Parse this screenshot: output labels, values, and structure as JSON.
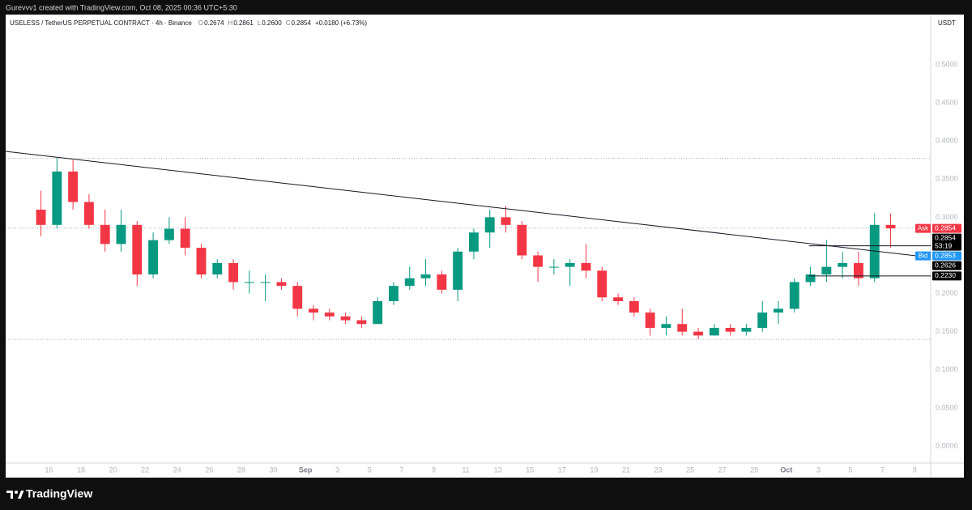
{
  "chart_data": {
    "type": "candlestick",
    "credit": "Gurevvv1 created with TradingView.com, Oct 08, 2025 00:36 UTC+5:30",
    "title": "USELESS / TetherUS PERPETUAL CONTRACT · 4h · Binance",
    "legend": [
      {
        "key": "O",
        "value": "0.2674"
      },
      {
        "key": "H",
        "value": "0.2861"
      },
      {
        "key": "L",
        "value": "0.2600"
      },
      {
        "key": "C",
        "value": "0.2854"
      }
    ],
    "change": "+0.0180 (+6.73%)",
    "currency": "USDT",
    "brand": "TradingView",
    "up_color": "#089981",
    "down_color": "#f23645",
    "x": [
      15.5,
      16.5,
      17.5,
      18.5,
      19.5,
      20.5,
      21.5,
      22.5,
      23.5,
      24.5,
      25.5,
      26.5,
      27.5,
      28.5,
      29.5,
      30.5,
      31.5,
      32.5,
      33.5,
      34.5,
      35.5,
      36.5,
      37.5,
      38.5,
      39.5,
      40.5,
      41.5,
      42.5,
      43.5,
      44.5,
      45.5,
      46.5,
      47.5,
      48.5,
      49.5,
      50.5,
      51.5,
      52.5,
      53.5,
      54.5,
      55.5,
      56.5,
      57.5,
      58.5,
      59.5,
      60.5,
      61.5,
      62.5,
      63.5,
      64.5,
      65.5,
      66.5,
      67.5,
      68.5
    ],
    "open": [
      0.31,
      0.29,
      0.36,
      0.32,
      0.29,
      0.265,
      0.29,
      0.225,
      0.27,
      0.285,
      0.26,
      0.225,
      0.24,
      0.215,
      0.215,
      0.215,
      0.21,
      0.18,
      0.175,
      0.17,
      0.165,
      0.16,
      0.19,
      0.21,
      0.22,
      0.225,
      0.205,
      0.255,
      0.28,
      0.3,
      0.29,
      0.25,
      0.235,
      0.235,
      0.24,
      0.23,
      0.195,
      0.19,
      0.175,
      0.155,
      0.16,
      0.15,
      0.145,
      0.155,
      0.15,
      0.155,
      0.175,
      0.18,
      0.215,
      0.225,
      0.235,
      0.24,
      0.22,
      0.29
    ],
    "high": [
      0.335,
      0.378,
      0.375,
      0.33,
      0.31,
      0.31,
      0.295,
      0.28,
      0.3,
      0.3,
      0.265,
      0.245,
      0.245,
      0.23,
      0.225,
      0.22,
      0.215,
      0.185,
      0.18,
      0.175,
      0.17,
      0.195,
      0.215,
      0.235,
      0.245,
      0.23,
      0.26,
      0.285,
      0.31,
      0.315,
      0.295,
      0.255,
      0.245,
      0.245,
      0.265,
      0.235,
      0.2,
      0.195,
      0.18,
      0.17,
      0.18,
      0.155,
      0.16,
      0.16,
      0.16,
      0.19,
      0.19,
      0.22,
      0.235,
      0.27,
      0.255,
      0.255,
      0.305,
      0.305
    ],
    "low": [
      0.275,
      0.285,
      0.31,
      0.285,
      0.255,
      0.255,
      0.21,
      0.22,
      0.265,
      0.25,
      0.22,
      0.22,
      0.205,
      0.2,
      0.19,
      0.205,
      0.17,
      0.165,
      0.165,
      0.16,
      0.155,
      0.16,
      0.185,
      0.205,
      0.21,
      0.2,
      0.19,
      0.245,
      0.26,
      0.28,
      0.245,
      0.215,
      0.225,
      0.21,
      0.22,
      0.19,
      0.185,
      0.17,
      0.145,
      0.145,
      0.145,
      0.14,
      0.145,
      0.145,
      0.145,
      0.15,
      0.16,
      0.175,
      0.21,
      0.215,
      0.22,
      0.21,
      0.215,
      0.26
    ],
    "close": [
      0.29,
      0.36,
      0.32,
      0.29,
      0.265,
      0.29,
      0.225,
      0.27,
      0.285,
      0.26,
      0.225,
      0.24,
      0.215,
      0.215,
      0.215,
      0.21,
      0.18,
      0.175,
      0.17,
      0.165,
      0.16,
      0.19,
      0.21,
      0.22,
      0.225,
      0.205,
      0.255,
      0.28,
      0.3,
      0.29,
      0.25,
      0.235,
      0.235,
      0.24,
      0.23,
      0.195,
      0.19,
      0.175,
      0.155,
      0.16,
      0.15,
      0.145,
      0.155,
      0.15,
      0.155,
      0.175,
      0.18,
      0.215,
      0.225,
      0.235,
      0.24,
      0.22,
      0.29,
      0.2854
    ],
    "xlim": [
      13.3,
      71.0
    ],
    "ylim": [
      -0.0223,
      0.5658
    ],
    "xticks": [
      16,
      18,
      20,
      22,
      24,
      26,
      28,
      30,
      {
        "value": 32,
        "label": "Sep"
      },
      {
        "value": 34,
        "label": "3"
      },
      {
        "value": 36,
        "label": "5"
      },
      {
        "value": 38,
        "label": "7"
      },
      {
        "value": 40,
        "label": "9"
      },
      {
        "value": 42,
        "label": "11"
      },
      {
        "value": 44,
        "label": "13"
      },
      {
        "value": 46,
        "label": "15"
      },
      {
        "value": 48,
        "label": "17"
      },
      {
        "value": 50,
        "label": "19"
      },
      {
        "value": 52,
        "label": "21"
      },
      {
        "value": 54,
        "label": "23"
      },
      {
        "value": 56,
        "label": "25"
      },
      {
        "value": 58,
        "label": "27"
      },
      {
        "value": 60,
        "label": "29"
      },
      {
        "value": 62,
        "label": "Oct"
      },
      {
        "value": 64,
        "label": "3"
      },
      {
        "value": 66,
        "label": "5"
      },
      {
        "value": 68,
        "label": "7"
      },
      {
        "value": 70,
        "label": "9"
      }
    ],
    "yticks": [
      {
        "value": 0,
        "label": "0.0000"
      },
      {
        "value": 0.05,
        "label": "0.0500"
      },
      {
        "value": 0.1,
        "label": "0.1000"
      },
      {
        "value": 0.15,
        "label": "0.1500"
      },
      {
        "value": 0.2,
        "label": "0.2000"
      },
      {
        "value": 0.25,
        "label": "0.2500"
      },
      {
        "value": 0.3,
        "label": "0.3000"
      },
      {
        "value": 0.35,
        "label": "0.3500"
      },
      {
        "value": 0.4,
        "label": "0.4000"
      },
      {
        "value": 0.45,
        "label": "0.4500"
      },
      {
        "value": 0.5,
        "label": "0.5000"
      }
    ],
    "dotted_lines": [
      0.3775,
      0.2858,
      0.14
    ],
    "trendline": {
      "x": [
        13.3,
        71.0
      ],
      "y": [
        0.3864,
        0.2473
      ]
    },
    "levels": [
      {
        "tag": "Ask",
        "value": 0.2854,
        "color": "#f23645"
      },
      {
        "value": 0.2854,
        "countdown": "53:19",
        "color": "#000000"
      },
      {
        "tag": "Bid",
        "value": 0.2853,
        "color": "#2196f3"
      },
      {
        "value": 0.2626,
        "color": "#000000",
        "line_from": 63.4
      },
      {
        "value": {
          "value": 0.223,
          "label": "0.2230"
        },
        "color": "#000000",
        "line_from": 63.4
      }
    ]
  }
}
